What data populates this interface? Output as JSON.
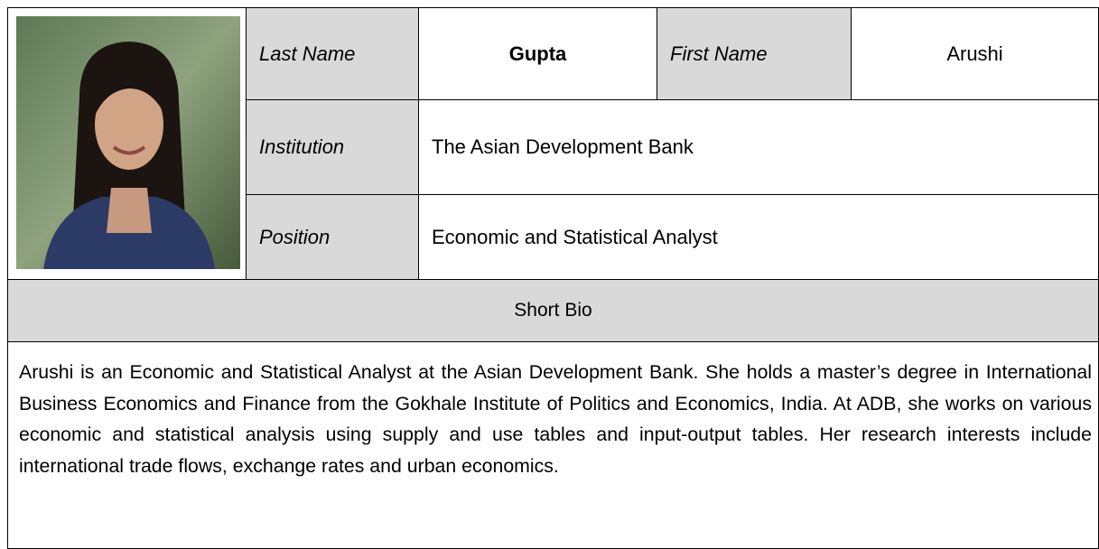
{
  "profile": {
    "last_name_label": "Last Name",
    "last_name": "Gupta",
    "first_name_label": "First Name",
    "first_name": "Arushi",
    "institution_label": "Institution",
    "institution": "The Asian Development Bank",
    "position_label": "Position",
    "position": "Economic and Statistical Analyst",
    "bio_heading": "Short Bio",
    "bio": "Arushi is an Economic and Statistical Analyst at the Asian Development Bank. She holds a master’s degree in International Business Economics and Finance from the Gokhale Institute of Politics and Economics, India. At ADB, she works on various economic and statistical analysis using supply and use tables and input-output tables. Her research interests include international trade flows, exchange rates and urban economics."
  }
}
